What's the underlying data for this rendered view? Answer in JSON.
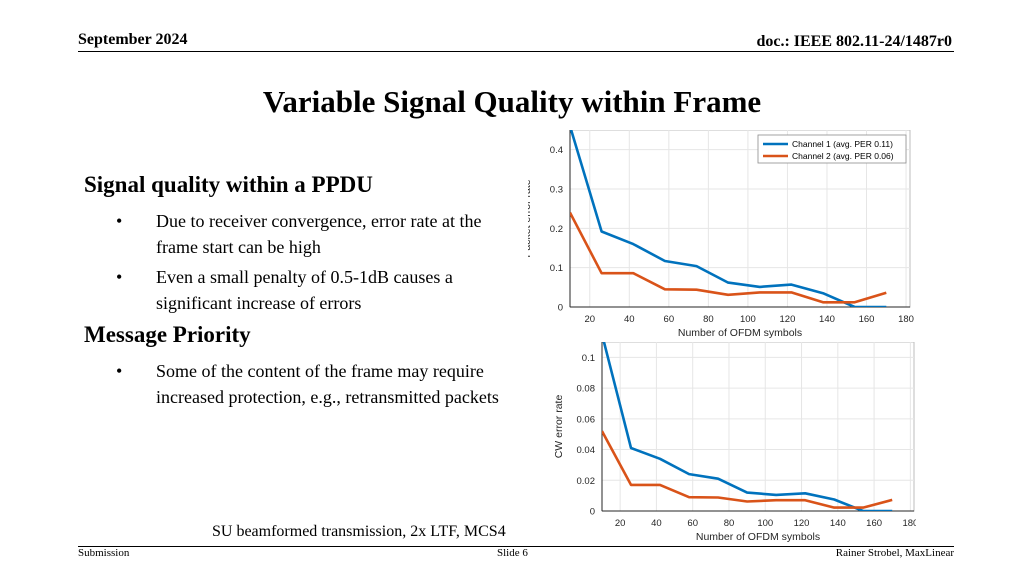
{
  "header": {
    "date": "September 2024",
    "doc": "doc.: IEEE 802.11-24/1487r0"
  },
  "title": "Variable Signal Quality within Frame",
  "sections": [
    {
      "heading": "Signal quality within a PPDU",
      "bullets": [
        "Due to receiver convergence, error rate at the frame start can be high",
        "Even a small penalty of 0.5-1dB causes a significant increase of errors"
      ]
    },
    {
      "heading": "Message Priority",
      "bullets": [
        "Some of the content of the frame may require increased protection, e.g., retransmitted packets"
      ]
    }
  ],
  "caption": "SU beamformed transmission, 2x LTF, MCS4",
  "footer": {
    "left": "Submission",
    "center": "Slide 6",
    "right": "Rainer Strobel, MaxLinear"
  },
  "colors": {
    "series1": "#0072BD",
    "series2": "#D95319",
    "grid": "#e6e6e6",
    "axis": "#262626"
  },
  "chart_data": [
    {
      "type": "line",
      "xlabel": "Number of OFDM symbols",
      "ylabel": "Packet error rate",
      "xlim": [
        10,
        182
      ],
      "ylim": [
        0,
        0.45
      ],
      "xticks": [
        20,
        40,
        60,
        80,
        100,
        120,
        140,
        160,
        180
      ],
      "yticks": [
        0,
        0.1,
        0.2,
        0.3,
        0.4
      ],
      "ytick_labels": [
        "0",
        "0.1",
        "0.2",
        "0.3",
        "0.4"
      ],
      "grid": true,
      "legend": "top-right",
      "x": [
        10,
        26,
        42,
        58,
        74,
        90,
        106,
        122,
        138,
        154,
        170
      ],
      "series": [
        {
          "name": "Channel 1 (avg. PER 0.11)",
          "values": [
            0.46,
            0.192,
            0.16,
            0.117,
            0.104,
            0.062,
            0.051,
            0.057,
            0.035,
            0.0,
            0.0
          ]
        },
        {
          "name": "Channel 2 (avg. PER 0.06)",
          "values": [
            0.24,
            0.086,
            0.086,
            0.045,
            0.044,
            0.031,
            0.037,
            0.037,
            0.012,
            0.012,
            0.036
          ]
        }
      ]
    },
    {
      "type": "line",
      "xlabel": "Number of OFDM symbols",
      "ylabel": "CW error rate",
      "xlim": [
        10,
        182
      ],
      "ylim": [
        0,
        0.11
      ],
      "xticks": [
        20,
        40,
        60,
        80,
        100,
        120,
        140,
        160,
        180
      ],
      "yticks": [
        0,
        0.02,
        0.04,
        0.06,
        0.08,
        0.1
      ],
      "ytick_labels": [
        "0",
        "0.02",
        "0.04",
        "0.06",
        "0.08",
        "0.1"
      ],
      "grid": true,
      "x": [
        10,
        26,
        42,
        58,
        74,
        90,
        106,
        122,
        138,
        154,
        170
      ],
      "series": [
        {
          "values": [
            0.115,
            0.041,
            0.034,
            0.024,
            0.021,
            0.012,
            0.0105,
            0.0115,
            0.0075,
            0.0,
            0.0
          ]
        },
        {
          "values": [
            0.052,
            0.017,
            0.017,
            0.009,
            0.0088,
            0.0062,
            0.007,
            0.007,
            0.0022,
            0.0022,
            0.0072
          ]
        }
      ]
    }
  ]
}
